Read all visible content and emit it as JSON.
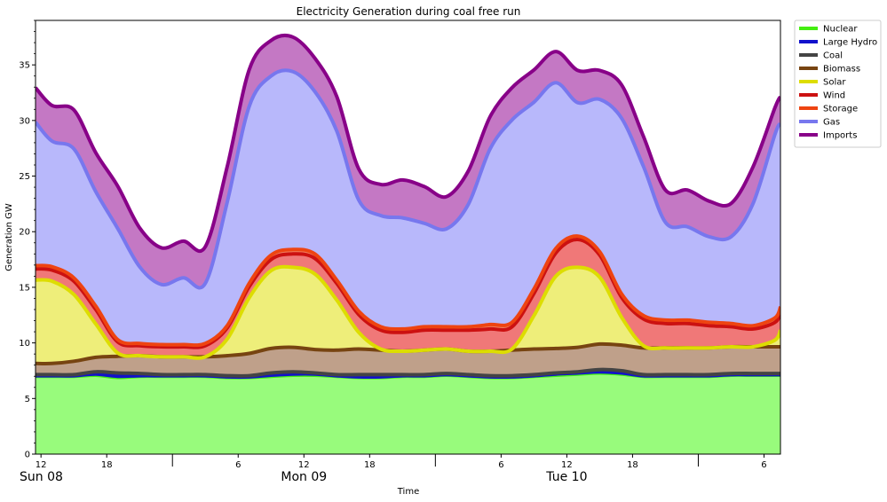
{
  "chart_data": {
    "type": "area",
    "title": "Electricity Generation during coal free run",
    "xlabel": "Time",
    "ylabel": "Generation GW",
    "ylim": [
      0,
      39
    ],
    "yticks": [
      0,
      5,
      10,
      15,
      20,
      25,
      30,
      35
    ],
    "xlim": [
      11.5,
      79.5
    ],
    "hour_ticks": [
      {
        "x": 12,
        "label": "12"
      },
      {
        "x": 18,
        "label": "18"
      },
      {
        "x": 30,
        "label": "6"
      },
      {
        "x": 36,
        "label": "12"
      },
      {
        "x": 42,
        "label": "18"
      },
      {
        "x": 54,
        "label": "6"
      },
      {
        "x": 60,
        "label": "12"
      },
      {
        "x": 66,
        "label": "18"
      },
      {
        "x": 78,
        "label": "6"
      }
    ],
    "day_boundaries": [
      24,
      48,
      72
    ],
    "day_labels": [
      {
        "x": 12,
        "label": "Sun 08"
      },
      {
        "x": 36,
        "label": "Mon 09"
      },
      {
        "x": 60,
        "label": "Tue 10"
      }
    ],
    "x_hours": [
      11.5,
      13,
      15,
      17,
      19,
      21,
      23,
      25,
      27,
      29,
      31,
      33,
      35,
      37,
      39,
      41,
      43,
      45,
      47,
      49,
      51,
      53,
      55,
      57,
      59,
      61,
      63,
      65,
      67,
      69,
      71,
      73,
      75,
      77,
      79,
      79.5
    ],
    "legend_position": "outside-top-right",
    "series": [
      {
        "name": "Nuclear",
        "line_color": "#44ee11",
        "fill_color": "#98fb7c",
        "values": [
          7.0,
          7.0,
          7.0,
          7.1,
          6.9,
          7.0,
          7.0,
          7.0,
          7.0,
          6.9,
          6.9,
          7.0,
          7.1,
          7.1,
          7.0,
          6.9,
          6.9,
          7.0,
          7.0,
          7.1,
          7.0,
          6.9,
          6.9,
          7.0,
          7.1,
          7.2,
          7.3,
          7.2,
          7.0,
          7.0,
          7.0,
          7.0,
          7.1,
          7.1,
          7.1,
          7.1
        ]
      },
      {
        "name": "Large Hydro",
        "line_color": "#1111cc",
        "fill_color": "#7777dd",
        "values": [
          0.05,
          0.05,
          0.05,
          0.1,
          0.1,
          0.05,
          0.05,
          0.05,
          0.05,
          0.05,
          0.05,
          0.1,
          0.1,
          0.1,
          0.05,
          0.05,
          0.05,
          0.05,
          0.05,
          0.05,
          0.05,
          0.05,
          0.05,
          0.05,
          0.1,
          0.1,
          0.1,
          0.1,
          0.05,
          0.05,
          0.05,
          0.05,
          0.05,
          0.05,
          0.05,
          0.05
        ]
      },
      {
        "name": "Coal",
        "line_color": "#444444",
        "fill_color": "#888888",
        "values": [
          0.1,
          0.1,
          0.1,
          0.2,
          0.3,
          0.2,
          0.1,
          0.1,
          0.1,
          0.1,
          0.1,
          0.2,
          0.2,
          0.1,
          0.1,
          0.2,
          0.2,
          0.1,
          0.1,
          0.1,
          0.1,
          0.1,
          0.1,
          0.1,
          0.1,
          0.1,
          0.2,
          0.2,
          0.1,
          0.1,
          0.1,
          0.1,
          0.1,
          0.1,
          0.1,
          0.1
        ]
      },
      {
        "name": "Biomass",
        "line_color": "#774411",
        "fill_color": "#bfa08a",
        "values": [
          1.0,
          1.0,
          1.2,
          1.3,
          1.5,
          1.6,
          1.6,
          1.6,
          1.6,
          1.8,
          2.0,
          2.2,
          2.2,
          2.1,
          2.2,
          2.3,
          2.2,
          2.1,
          2.2,
          2.2,
          2.1,
          2.2,
          2.3,
          2.3,
          2.2,
          2.2,
          2.3,
          2.3,
          2.4,
          2.4,
          2.4,
          2.4,
          2.4,
          2.4,
          2.4,
          2.4
        ]
      },
      {
        "name": "Solar",
        "line_color": "#dddd00",
        "fill_color": "#eeee7a",
        "values": [
          7.5,
          7.4,
          6.0,
          3.0,
          0.3,
          0.0,
          0.0,
          0.0,
          0.0,
          1.5,
          5.0,
          7.0,
          7.2,
          6.8,
          4.5,
          1.5,
          0.1,
          0.0,
          0.0,
          0.0,
          0.0,
          0.0,
          0.1,
          3.0,
          6.5,
          7.2,
          6.0,
          2.5,
          0.2,
          0.0,
          0.0,
          0.0,
          0.0,
          0.0,
          0.6,
          1.5
        ]
      },
      {
        "name": "Wind",
        "line_color": "#cc1111",
        "fill_color": "#f07878",
        "values": [
          1.0,
          1.0,
          1.2,
          1.3,
          1.0,
          0.9,
          0.9,
          0.9,
          1.0,
          1.0,
          1.0,
          1.0,
          1.2,
          1.4,
          1.5,
          1.6,
          1.7,
          1.7,
          1.8,
          1.7,
          1.9,
          2.0,
          2.0,
          2.0,
          2.1,
          2.5,
          2.0,
          1.8,
          2.4,
          2.2,
          2.2,
          2.0,
          1.8,
          1.6,
          1.6,
          1.6
        ]
      },
      {
        "name": "Storage",
        "line_color": "#ee4411",
        "fill_color": "#f08060",
        "values": [
          0.3,
          0.3,
          0.3,
          0.3,
          0.2,
          0.2,
          0.2,
          0.2,
          0.2,
          0.2,
          0.3,
          0.4,
          0.4,
          0.4,
          0.3,
          0.3,
          0.3,
          0.3,
          0.3,
          0.3,
          0.3,
          0.4,
          0.4,
          0.4,
          0.4,
          0.3,
          0.3,
          0.3,
          0.3,
          0.3,
          0.3,
          0.3,
          0.3,
          0.3,
          0.4,
          0.5
        ]
      },
      {
        "name": "Gas",
        "line_color": "#7777ee",
        "fill_color": "#b8b8fb",
        "values": [
          12.9,
          11.3,
          11.6,
          10.3,
          10.0,
          6.9,
          5.4,
          6.0,
          5.4,
          11.1,
          15.9,
          16.1,
          16.0,
          14.6,
          13.4,
          10.0,
          10.0,
          10.0,
          9.3,
          8.8,
          11.0,
          15.8,
          18.2,
          16.8,
          14.9,
          12.0,
          13.7,
          15.8,
          13.4,
          8.8,
          8.4,
          7.7,
          7.8,
          11.0,
          16.5,
          16.5
        ]
      },
      {
        "name": "Imports",
        "line_color": "#880088",
        "fill_color": "#c478c4",
        "values": [
          3.1,
          3.2,
          3.5,
          3.5,
          3.8,
          3.5,
          3.3,
          3.3,
          3.3,
          3.2,
          3.3,
          3.2,
          3.1,
          3.0,
          3.1,
          2.8,
          2.8,
          3.4,
          3.3,
          2.9,
          3.0,
          2.9,
          2.9,
          2.9,
          2.8,
          2.9,
          2.6,
          3.0,
          2.7,
          2.9,
          3.3,
          3.2,
          3.0,
          3.3,
          2.4,
          2.4
        ]
      }
    ]
  }
}
